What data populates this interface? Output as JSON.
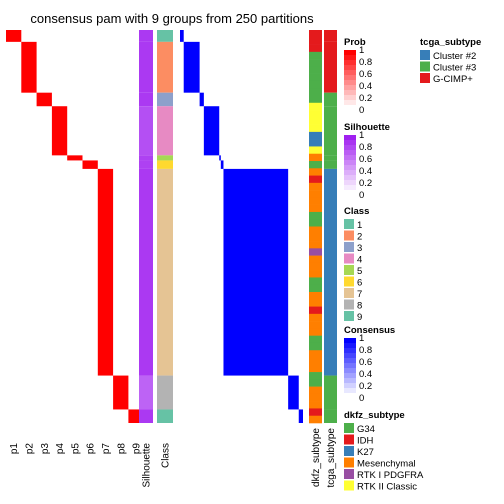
{
  "chart_data": {
    "type": "heatmap",
    "title": "consensus pam with 9 groups from 250 partitions",
    "n_samples": 232,
    "membership_columns": [
      "p1",
      "p2",
      "p3",
      "p4",
      "p5",
      "p6",
      "p7",
      "p8",
      "p9"
    ],
    "silhouette_label": "Silhouette",
    "class_label": "Class",
    "annotation_labels": [
      "dkfz_subtype",
      "tcga_subtype"
    ],
    "groups": [
      {
        "class": "1",
        "size": 7,
        "silhouette": 0.85
      },
      {
        "class": "2",
        "size": 30,
        "silhouette": 0.85
      },
      {
        "class": "3",
        "size": 8,
        "silhouette": 0.85
      },
      {
        "class": "4",
        "size": 29,
        "silhouette": 0.72
      },
      {
        "class": "5",
        "size": 3,
        "silhouette": 0.8
      },
      {
        "class": "6",
        "size": 5,
        "silhouette": 0.8
      },
      {
        "class": "7",
        "size": 122,
        "silhouette": 0.85
      },
      {
        "class": "8",
        "size": 20,
        "silhouette": 0.6
      },
      {
        "class": "9",
        "size": 8,
        "silhouette": 0.85
      }
    ],
    "prob_legend": {
      "title": "Prob",
      "ticks": [
        "1",
        "0.8",
        "0.6",
        "0.4",
        "0.2",
        "0"
      ]
    },
    "silhouette_legend": {
      "title": "Silhouette",
      "ticks": [
        "1",
        "0.8",
        "0.6",
        "0.4",
        "0.2",
        "0"
      ]
    },
    "consensus_legend": {
      "title": "Consensus",
      "ticks": [
        "1",
        "0.8",
        "0.6",
        "0.4",
        "0.2",
        "0"
      ]
    },
    "class_legend": {
      "title": "Class",
      "entries": [
        {
          "label": "1",
          "color": "#66C2A5"
        },
        {
          "label": "2",
          "color": "#FC8D62"
        },
        {
          "label": "3",
          "color": "#8DA0CB"
        },
        {
          "label": "4",
          "color": "#E78AC3"
        },
        {
          "label": "5",
          "color": "#A6D854"
        },
        {
          "label": "6",
          "color": "#FFD92F"
        },
        {
          "label": "7",
          "color": "#E5C494"
        },
        {
          "label": "8",
          "color": "#B3B3B3"
        },
        {
          "label": "9",
          "color": "#66C2A5"
        }
      ]
    },
    "tcga_legend": {
      "title": "tcga_subtype",
      "entries": [
        {
          "label": "Cluster #2",
          "color": "#377EB8"
        },
        {
          "label": "Cluster #3",
          "color": "#4DAF4A"
        },
        {
          "label": "G-CIMP+",
          "color": "#E41A1C"
        }
      ]
    },
    "dkfz_legend": {
      "title": "dkfz_subtype",
      "entries": [
        {
          "label": "G34",
          "color": "#4DAF4A"
        },
        {
          "label": "IDH",
          "color": "#E41A1C"
        },
        {
          "label": "K27",
          "color": "#377EB8"
        },
        {
          "label": "Mesenchymal",
          "color": "#FF7F00"
        },
        {
          "label": "RTK I PDGFRA",
          "color": "#984EA3"
        },
        {
          "label": "RTK II Classic",
          "color": "#FFFF33"
        }
      ]
    },
    "colors": {
      "prob_high": "#FF0000",
      "consensus_high": "#0000FF",
      "silhouette_high": "#A020F0"
    }
  }
}
